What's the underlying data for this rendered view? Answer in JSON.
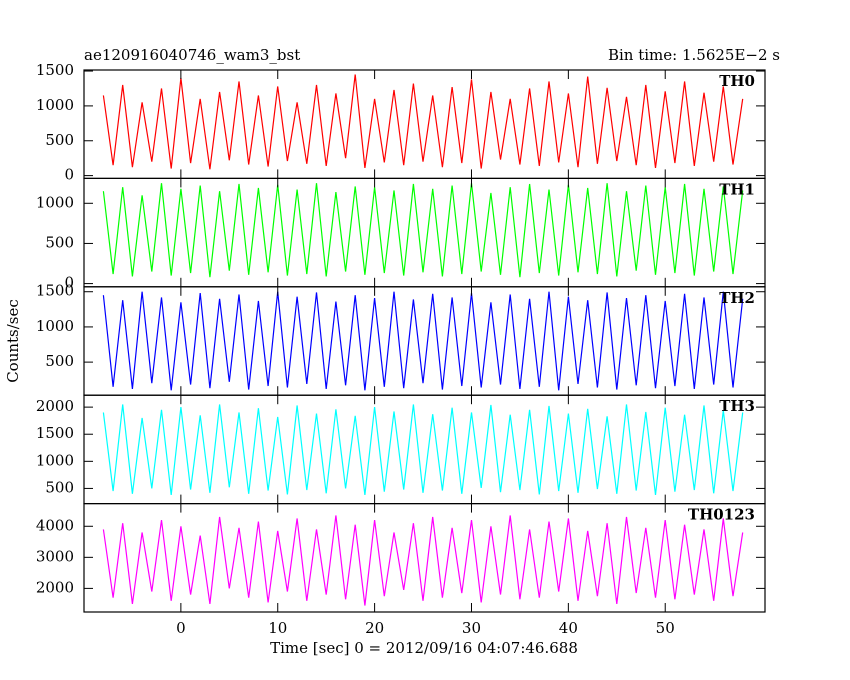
{
  "chart_data": {
    "type": "line",
    "title": "ae120916040746_wam3_bst",
    "subtitle": "Bin time: 1.5625E−2 s",
    "xlabel": "Time [sec] 0 = 2012/09/16 04:07:46.688",
    "ylabel": "Counts/sec",
    "xlim": [
      -10,
      60.3
    ],
    "xticks": [
      0,
      10,
      20,
      30,
      40,
      50
    ],
    "x": [
      -8,
      -7,
      -6,
      -5,
      -4,
      -3,
      -2,
      -1,
      0,
      1,
      2,
      3,
      4,
      5,
      6,
      7,
      8,
      9,
      10,
      11,
      12,
      13,
      14,
      15,
      16,
      17,
      18,
      19,
      20,
      21,
      22,
      23,
      24,
      25,
      26,
      27,
      28,
      29,
      30,
      31,
      32,
      33,
      34,
      35,
      36,
      37,
      38,
      39,
      40,
      41,
      42,
      43,
      44,
      45,
      46,
      47,
      48,
      49,
      50,
      51,
      52,
      53,
      54,
      55,
      56,
      57,
      58
    ],
    "panels": [
      {
        "name": "TH0",
        "color": "#ff0000",
        "ylim": [
          -40,
          1515
        ],
        "yticks": [
          0,
          500,
          1000,
          1500
        ],
        "values": [
          1150,
          150,
          1300,
          120,
          1050,
          200,
          1250,
          100,
          1400,
          180,
          1100,
          90,
          1200,
          220,
          1350,
          160,
          1150,
          130,
          1280,
          210,
          1050,
          170,
          1300,
          140,
          1180,
          250,
          1450,
          110,
          1100,
          190,
          1230,
          150,
          1320,
          200,
          1150,
          120,
          1270,
          180,
          1380,
          100,
          1200,
          230,
          1100,
          160,
          1250,
          140,
          1350,
          190,
          1180,
          120,
          1420,
          170,
          1260,
          210,
          1130,
          150,
          1300,
          110,
          1210,
          180,
          1350,
          140,
          1190,
          200,
          1280,
          160,
          1100
        ]
      },
      {
        "name": "TH1",
        "color": "#00ff00",
        "ylim": [
          -40,
          1310
        ],
        "yticks": [
          0,
          500,
          1000
        ],
        "values": [
          1150,
          120,
          1200,
          90,
          1100,
          150,
          1250,
          100,
          1180,
          130,
          1220,
          80,
          1150,
          160,
          1240,
          110,
          1190,
          140,
          1230,
          100,
          1170,
          120,
          1250,
          90,
          1140,
          150,
          1210,
          110,
          1200,
          130,
          1160,
          100,
          1240,
          140,
          1180,
          90,
          1220,
          120,
          1250,
          150,
          1130,
          110,
          1200,
          80,
          1240,
          130,
          1170,
          100,
          1230,
          140,
          1190,
          120,
          1250,
          90,
          1150,
          160,
          1220,
          110,
          1200,
          130,
          1240,
          100,
          1180,
          150,
          1210,
          120,
          1160
        ]
      },
      {
        "name": "TH2",
        "color": "#0000ff",
        "ylim": [
          30,
          1570
        ],
        "yticks": [
          500,
          1000,
          1500
        ],
        "values": [
          1450,
          150,
          1380,
          120,
          1500,
          200,
          1420,
          100,
          1350,
          180,
          1480,
          130,
          1400,
          220,
          1460,
          110,
          1370,
          160,
          1500,
          140,
          1430,
          190,
          1490,
          120,
          1360,
          170,
          1450,
          100,
          1410,
          150,
          1500,
          130,
          1390,
          200,
          1470,
          110,
          1420,
          160,
          1480,
          140,
          1350,
          180,
          1460,
          120,
          1400,
          150,
          1500,
          100,
          1430,
          190,
          1380,
          140,
          1490,
          110,
          1410,
          170,
          1450,
          130,
          1370,
          160,
          1470,
          120,
          1420,
          180,
          1500,
          140,
          1400
        ]
      },
      {
        "name": "TH3",
        "color": "#00ffff",
        "ylim": [
          220,
          2220
        ],
        "yticks": [
          500,
          1000,
          1500,
          2000
        ],
        "values": [
          1900,
          450,
          2050,
          400,
          1800,
          500,
          1950,
          380,
          2000,
          480,
          1850,
          420,
          2050,
          520,
          1900,
          400,
          1980,
          460,
          1820,
          390,
          2030,
          470,
          1880,
          410,
          1960,
          500,
          1840,
          380,
          2000,
          440,
          1920,
          480,
          2050,
          420,
          1870,
          460,
          1990,
          400,
          1900,
          510,
          2040,
          430,
          1860,
          470,
          1950,
          390,
          2020,
          450,
          1880,
          420,
          1970,
          490,
          1830,
          400,
          2050,
          460,
          1910,
          380,
          1990,
          440,
          1860,
          470,
          2030,
          410,
          1940,
          450,
          1900
        ]
      },
      {
        "name": "TH0123",
        "color": "#ff00ff",
        "ylim": [
          1240,
          4730
        ],
        "yticks": [
          2000,
          3000,
          4000
        ],
        "values": [
          3900,
          1700,
          4100,
          1500,
          3800,
          1900,
          4200,
          1600,
          4000,
          1800,
          3700,
          1500,
          4300,
          2000,
          3950,
          1700,
          4150,
          1550,
          3850,
          1900,
          4250,
          1600,
          3900,
          1800,
          4350,
          1650,
          4050,
          1450,
          4200,
          1750,
          3800,
          1950,
          4100,
          1600,
          4300,
          1700,
          3950,
          1850,
          4200,
          1550,
          4000,
          1800,
          4350,
          1650,
          3900,
          1700,
          4150,
          1900,
          4250,
          1600,
          3850,
          1750,
          4100,
          1500,
          4300,
          1850,
          3950,
          1700,
          4200,
          1650,
          4050,
          1800,
          3900,
          1600,
          4250,
          1750,
          3800
        ]
      }
    ]
  }
}
